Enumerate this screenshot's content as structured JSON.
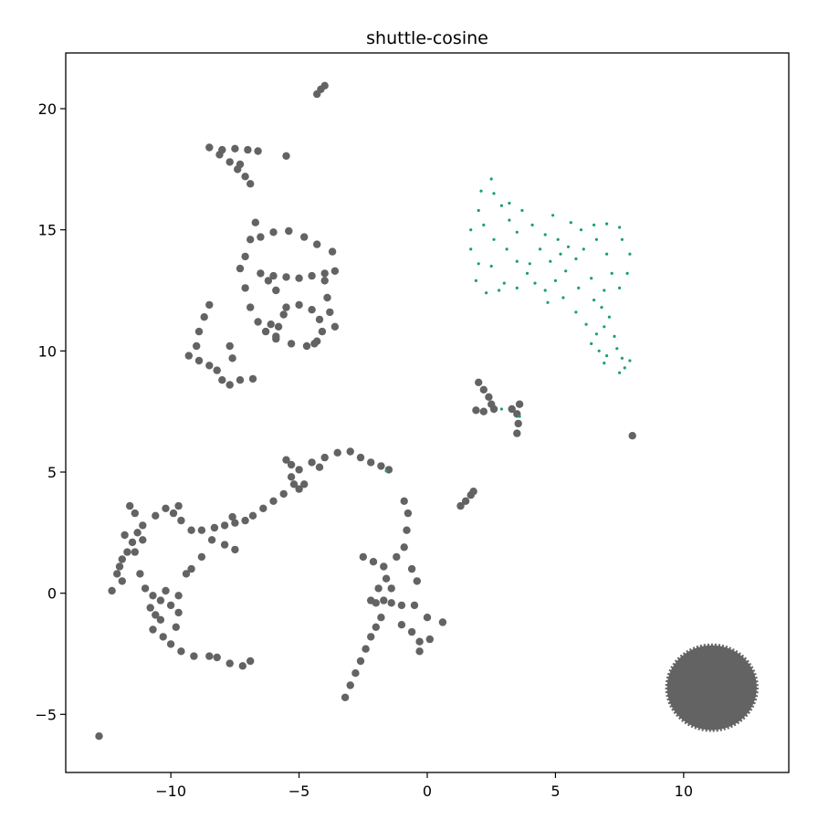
{
  "chart_data": {
    "type": "scatter",
    "title": "shuttle-cosine",
    "xlabel": "",
    "ylabel": "",
    "xlim": [
      -14.1,
      14.1
    ],
    "ylim": [
      -7.4,
      22.3
    ],
    "xticks": [
      -10,
      -5,
      0,
      5,
      10
    ],
    "yticks": [
      -5,
      0,
      5,
      10,
      15,
      20
    ],
    "grid": false,
    "legend": "none",
    "colors": {
      "main": "#636363",
      "highlight": "#1b9e77"
    },
    "series": [
      {
        "color": "#636363",
        "values": [
          {
            "x": -4.3,
            "y": 20.6
          },
          {
            "x": -4.15,
            "y": 20.8
          },
          {
            "x": -4.0,
            "y": 20.95
          },
          {
            "x": -8.5,
            "y": 18.4
          },
          {
            "x": -8.1,
            "y": 18.1
          },
          {
            "x": -7.7,
            "y": 17.8
          },
          {
            "x": -7.4,
            "y": 17.5
          },
          {
            "x": -7.1,
            "y": 17.2
          },
          {
            "x": -6.9,
            "y": 16.9
          },
          {
            "x": -8.0,
            "y": 18.3
          },
          {
            "x": -7.5,
            "y": 18.35
          },
          {
            "x": -7.0,
            "y": 18.3
          },
          {
            "x": -6.6,
            "y": 18.25
          },
          {
            "x": -7.3,
            "y": 17.7
          },
          {
            "x": -5.5,
            "y": 18.05
          },
          {
            "x": -6.7,
            "y": 15.3
          },
          {
            "x": -6.9,
            "y": 14.6
          },
          {
            "x": -7.1,
            "y": 13.9
          },
          {
            "x": -7.3,
            "y": 13.4
          },
          {
            "x": -7.1,
            "y": 12.6
          },
          {
            "x": -6.9,
            "y": 11.8
          },
          {
            "x": -6.6,
            "y": 11.2
          },
          {
            "x": -6.3,
            "y": 10.8
          },
          {
            "x": -5.9,
            "y": 10.5
          },
          {
            "x": -5.3,
            "y": 10.3
          },
          {
            "x": -4.7,
            "y": 10.2
          },
          {
            "x": -4.4,
            "y": 10.3
          },
          {
            "x": -6.5,
            "y": 14.7
          },
          {
            "x": -6.0,
            "y": 14.9
          },
          {
            "x": -5.4,
            "y": 14.95
          },
          {
            "x": -4.8,
            "y": 14.7
          },
          {
            "x": -4.3,
            "y": 14.4
          },
          {
            "x": -3.7,
            "y": 14.1
          },
          {
            "x": -6.5,
            "y": 13.2
          },
          {
            "x": -6.0,
            "y": 13.1
          },
          {
            "x": -5.5,
            "y": 13.05
          },
          {
            "x": -5.0,
            "y": 13.0
          },
          {
            "x": -4.5,
            "y": 13.1
          },
          {
            "x": -4.0,
            "y": 13.2
          },
          {
            "x": -3.6,
            "y": 13.3
          },
          {
            "x": -6.2,
            "y": 12.9
          },
          {
            "x": -5.9,
            "y": 12.5
          },
          {
            "x": -5.0,
            "y": 11.9
          },
          {
            "x": -4.5,
            "y": 11.7
          },
          {
            "x": -4.2,
            "y": 11.3
          },
          {
            "x": -4.1,
            "y": 10.8
          },
          {
            "x": -4.3,
            "y": 10.4
          },
          {
            "x": -5.6,
            "y": 11.5
          },
          {
            "x": -5.8,
            "y": 11.0
          },
          {
            "x": -5.5,
            "y": 11.8
          },
          {
            "x": -4.0,
            "y": 12.9
          },
          {
            "x": -3.9,
            "y": 12.2
          },
          {
            "x": -3.8,
            "y": 11.6
          },
          {
            "x": -3.6,
            "y": 11.0
          },
          {
            "x": -6.1,
            "y": 11.1
          },
          {
            "x": -5.9,
            "y": 10.6
          },
          {
            "x": -8.5,
            "y": 11.9
          },
          {
            "x": -8.7,
            "y": 11.4
          },
          {
            "x": -8.9,
            "y": 10.8
          },
          {
            "x": -9.0,
            "y": 10.2
          },
          {
            "x": -9.3,
            "y": 9.8
          },
          {
            "x": -8.9,
            "y": 9.6
          },
          {
            "x": -8.5,
            "y": 9.4
          },
          {
            "x": -8.2,
            "y": 9.2
          },
          {
            "x": -8.0,
            "y": 8.8
          },
          {
            "x": -7.7,
            "y": 8.6
          },
          {
            "x": -7.3,
            "y": 8.8
          },
          {
            "x": -6.8,
            "y": 8.85
          },
          {
            "x": -7.7,
            "y": 10.2
          },
          {
            "x": -7.6,
            "y": 9.7
          },
          {
            "x": 2.0,
            "y": 8.7
          },
          {
            "x": 2.2,
            "y": 8.4
          },
          {
            "x": 2.4,
            "y": 8.1
          },
          {
            "x": 2.5,
            "y": 7.8
          },
          {
            "x": 1.9,
            "y": 7.55
          },
          {
            "x": 2.2,
            "y": 7.5
          },
          {
            "x": 2.6,
            "y": 7.6
          },
          {
            "x": 3.6,
            "y": 7.8
          },
          {
            "x": 3.5,
            "y": 7.4
          },
          {
            "x": 3.55,
            "y": 7.0
          },
          {
            "x": 3.5,
            "y": 6.6
          },
          {
            "x": 3.3,
            "y": 7.6
          },
          {
            "x": 8.0,
            "y": 6.5
          },
          {
            "x": -12.8,
            "y": -5.9
          },
          {
            "x": -3.2,
            "y": -4.3
          },
          {
            "x": -3.0,
            "y": -3.8
          },
          {
            "x": -2.8,
            "y": -3.3
          },
          {
            "x": -2.6,
            "y": -2.8
          },
          {
            "x": -2.4,
            "y": -2.3
          },
          {
            "x": -2.2,
            "y": -1.8
          },
          {
            "x": -2.0,
            "y": -1.4
          },
          {
            "x": -1.8,
            "y": -1.0
          },
          {
            "x": -2.2,
            "y": -0.3
          },
          {
            "x": -2.0,
            "y": -0.4
          },
          {
            "x": -1.7,
            "y": -0.3
          },
          {
            "x": -1.4,
            "y": -0.4
          },
          {
            "x": -1.0,
            "y": -0.5
          },
          {
            "x": -0.5,
            "y": -0.5
          },
          {
            "x": -1.9,
            "y": 0.2
          },
          {
            "x": -1.6,
            "y": 0.6
          },
          {
            "x": -1.7,
            "y": 1.1
          },
          {
            "x": -2.1,
            "y": 1.3
          },
          {
            "x": -2.5,
            "y": 1.5
          },
          {
            "x": -1.2,
            "y": 1.5
          },
          {
            "x": -0.9,
            "y": 1.9
          },
          {
            "x": -0.8,
            "y": 2.6
          },
          {
            "x": -0.75,
            "y": 3.3
          },
          {
            "x": -0.9,
            "y": 3.8
          },
          {
            "x": -0.6,
            "y": 1.0
          },
          {
            "x": -0.4,
            "y": 0.5
          },
          {
            "x": -1.4,
            "y": 0.2
          },
          {
            "x": -1.0,
            "y": -1.3
          },
          {
            "x": -0.6,
            "y": -1.6
          },
          {
            "x": -0.3,
            "y": -2.0
          },
          {
            "x": 0.1,
            "y": -1.9
          },
          {
            "x": 0.6,
            "y": -1.2
          },
          {
            "x": 0.0,
            "y": -1.0
          },
          {
            "x": -0.3,
            "y": -2.4
          },
          {
            "x": 1.3,
            "y": 3.6
          },
          {
            "x": 1.5,
            "y": 3.8
          },
          {
            "x": 1.7,
            "y": 4.05
          },
          {
            "x": 1.8,
            "y": 4.2
          },
          {
            "x": -5.5,
            "y": 5.5
          },
          {
            "x": -5.3,
            "y": 5.3
          },
          {
            "x": -5.0,
            "y": 5.1
          },
          {
            "x": -5.3,
            "y": 4.8
          },
          {
            "x": -5.2,
            "y": 4.5
          },
          {
            "x": -5.0,
            "y": 4.3
          },
          {
            "x": -4.8,
            "y": 4.5
          },
          {
            "x": -4.5,
            "y": 5.4
          },
          {
            "x": -4.0,
            "y": 5.6
          },
          {
            "x": -3.5,
            "y": 5.8
          },
          {
            "x": -3.0,
            "y": 5.85
          },
          {
            "x": -2.6,
            "y": 5.6
          },
          {
            "x": -2.2,
            "y": 5.4
          },
          {
            "x": -1.8,
            "y": 5.25
          },
          {
            "x": -1.5,
            "y": 5.1
          },
          {
            "x": -4.2,
            "y": 5.2
          },
          {
            "x": -5.6,
            "y": 4.1
          },
          {
            "x": -6.0,
            "y": 3.8
          },
          {
            "x": -6.4,
            "y": 3.5
          },
          {
            "x": -6.8,
            "y": 3.2
          },
          {
            "x": -7.1,
            "y": 3.0
          },
          {
            "x": -7.5,
            "y": 2.9
          },
          {
            "x": -7.9,
            "y": 2.8
          },
          {
            "x": -8.3,
            "y": 2.7
          },
          {
            "x": -8.8,
            "y": 2.6
          },
          {
            "x": -9.2,
            "y": 2.6
          },
          {
            "x": -7.6,
            "y": 3.15
          },
          {
            "x": -9.6,
            "y": 3.0
          },
          {
            "x": -9.9,
            "y": 3.3
          },
          {
            "x": -10.2,
            "y": 3.5
          },
          {
            "x": -9.7,
            "y": 3.6
          },
          {
            "x": -10.6,
            "y": 3.2
          },
          {
            "x": -11.1,
            "y": 2.8
          },
          {
            "x": -11.6,
            "y": 3.6
          },
          {
            "x": -11.4,
            "y": 3.3
          },
          {
            "x": -8.4,
            "y": 2.2
          },
          {
            "x": -8.8,
            "y": 1.5
          },
          {
            "x": -9.2,
            "y": 1.0
          },
          {
            "x": -9.4,
            "y": 0.8
          },
          {
            "x": -7.9,
            "y": 2.0
          },
          {
            "x": -7.5,
            "y": 1.8
          },
          {
            "x": -11.3,
            "y": 2.5
          },
          {
            "x": -11.5,
            "y": 2.1
          },
          {
            "x": -11.7,
            "y": 1.7
          },
          {
            "x": -11.9,
            "y": 1.4
          },
          {
            "x": -12.0,
            "y": 1.1
          },
          {
            "x": -12.1,
            "y": 0.8
          },
          {
            "x": -11.9,
            "y": 0.5
          },
          {
            "x": -12.3,
            "y": 0.1
          },
          {
            "x": -11.4,
            "y": 1.7
          },
          {
            "x": -11.2,
            "y": 0.8
          },
          {
            "x": -11.8,
            "y": 2.4
          },
          {
            "x": -11.1,
            "y": 2.2
          },
          {
            "x": -11.0,
            "y": 0.2
          },
          {
            "x": -10.7,
            "y": -0.1
          },
          {
            "x": -10.4,
            "y": -0.3
          },
          {
            "x": -10.0,
            "y": -0.5
          },
          {
            "x": -9.7,
            "y": -0.1
          },
          {
            "x": -10.2,
            "y": 0.1
          },
          {
            "x": -10.8,
            "y": -0.6
          },
          {
            "x": -10.4,
            "y": -1.1
          },
          {
            "x": -10.6,
            "y": -0.9
          },
          {
            "x": -10.7,
            "y": -1.5
          },
          {
            "x": -10.3,
            "y": -1.8
          },
          {
            "x": -10.0,
            "y": -2.1
          },
          {
            "x": -9.6,
            "y": -2.4
          },
          {
            "x": -9.1,
            "y": -2.6
          },
          {
            "x": -9.8,
            "y": -1.4
          },
          {
            "x": -9.7,
            "y": -0.8
          },
          {
            "x": -8.5,
            "y": -2.6
          },
          {
            "x": -8.2,
            "y": -2.65
          },
          {
            "x": -7.7,
            "y": -2.9
          },
          {
            "x": -7.2,
            "y": -3.0
          },
          {
            "x": -6.9,
            "y": -2.8
          }
        ]
      },
      {
        "color": "#1b9e77",
        "values": [
          {
            "x": 2.5,
            "y": 17.1
          },
          {
            "x": 2.1,
            "y": 16.6
          },
          {
            "x": 2.0,
            "y": 15.8
          },
          {
            "x": 1.7,
            "y": 15.0
          },
          {
            "x": 1.7,
            "y": 14.2
          },
          {
            "x": 2.0,
            "y": 13.6
          },
          {
            "x": 1.9,
            "y": 12.9
          },
          {
            "x": 2.3,
            "y": 12.4
          },
          {
            "x": 2.8,
            "y": 12.5
          },
          {
            "x": 2.6,
            "y": 16.5
          },
          {
            "x": 2.9,
            "y": 16.0
          },
          {
            "x": 3.2,
            "y": 15.4
          },
          {
            "x": 3.5,
            "y": 14.9
          },
          {
            "x": 4.1,
            "y": 15.2
          },
          {
            "x": 4.6,
            "y": 14.8
          },
          {
            "x": 5.1,
            "y": 14.6
          },
          {
            "x": 5.5,
            "y": 14.3
          },
          {
            "x": 6.0,
            "y": 15.0
          },
          {
            "x": 6.5,
            "y": 15.2
          },
          {
            "x": 7.0,
            "y": 15.25
          },
          {
            "x": 7.5,
            "y": 15.1
          },
          {
            "x": 2.6,
            "y": 14.6
          },
          {
            "x": 2.5,
            "y": 13.5
          },
          {
            "x": 3.1,
            "y": 14.2
          },
          {
            "x": 3.5,
            "y": 13.7
          },
          {
            "x": 3.9,
            "y": 13.2
          },
          {
            "x": 4.2,
            "y": 12.8
          },
          {
            "x": 4.6,
            "y": 12.5
          },
          {
            "x": 5.0,
            "y": 12.9
          },
          {
            "x": 5.4,
            "y": 13.3
          },
          {
            "x": 5.8,
            "y": 13.8
          },
          {
            "x": 6.1,
            "y": 14.2
          },
          {
            "x": 3.0,
            "y": 12.8
          },
          {
            "x": 3.5,
            "y": 12.6
          },
          {
            "x": 4.0,
            "y": 13.6
          },
          {
            "x": 4.4,
            "y": 14.2
          },
          {
            "x": 4.8,
            "y": 13.7
          },
          {
            "x": 5.3,
            "y": 12.2
          },
          {
            "x": 5.8,
            "y": 11.6
          },
          {
            "x": 5.9,
            "y": 12.6
          },
          {
            "x": 6.4,
            "y": 13.0
          },
          {
            "x": 6.9,
            "y": 12.5
          },
          {
            "x": 7.2,
            "y": 13.2
          },
          {
            "x": 7.6,
            "y": 14.6
          },
          {
            "x": 7.9,
            "y": 14.0
          },
          {
            "x": 7.8,
            "y": 13.2
          },
          {
            "x": 7.5,
            "y": 12.6
          },
          {
            "x": 7.0,
            "y": 14.0
          },
          {
            "x": 6.6,
            "y": 14.6
          },
          {
            "x": 5.6,
            "y": 15.3
          },
          {
            "x": 4.9,
            "y": 15.6
          },
          {
            "x": 3.7,
            "y": 15.8
          },
          {
            "x": 3.2,
            "y": 16.1
          },
          {
            "x": 6.5,
            "y": 12.1
          },
          {
            "x": 6.8,
            "y": 11.8
          },
          {
            "x": 7.1,
            "y": 11.4
          },
          {
            "x": 6.9,
            "y": 11.0
          },
          {
            "x": 6.6,
            "y": 10.7
          },
          {
            "x": 6.4,
            "y": 10.3
          },
          {
            "x": 6.7,
            "y": 10.0
          },
          {
            "x": 7.0,
            "y": 9.8
          },
          {
            "x": 6.9,
            "y": 9.5
          },
          {
            "x": 7.3,
            "y": 10.6
          },
          {
            "x": 7.4,
            "y": 10.1
          },
          {
            "x": 7.6,
            "y": 9.7
          },
          {
            "x": 7.7,
            "y": 9.3
          },
          {
            "x": 7.5,
            "y": 9.1
          },
          {
            "x": 7.9,
            "y": 9.6
          },
          {
            "x": 6.2,
            "y": 11.1
          },
          {
            "x": 4.7,
            "y": 12.0
          },
          {
            "x": 2.2,
            "y": 15.2
          },
          {
            "x": 5.2,
            "y": 14.0
          },
          {
            "x": -1.6,
            "y": 5.05
          },
          {
            "x": 2.9,
            "y": 7.6
          },
          {
            "x": 3.6,
            "y": 7.3
          }
        ]
      }
    ],
    "blob": {
      "color": "#636363",
      "center": [
        11.1,
        -3.9
      ],
      "radius": [
        1.75,
        1.75
      ]
    }
  }
}
